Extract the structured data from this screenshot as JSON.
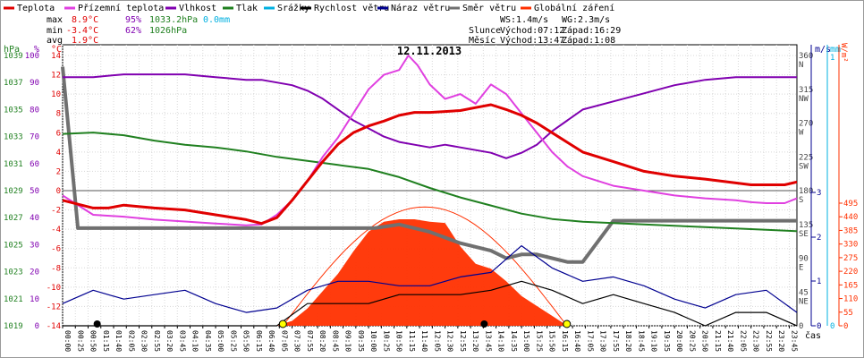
{
  "legend": [
    {
      "label": "Teplota",
      "color": "#e00000"
    },
    {
      "label": "Přízemní teplota",
      "color": "#e040e0"
    },
    {
      "label": "Vlhkost",
      "color": "#8000b0"
    },
    {
      "label": "Tlak",
      "color": "#208020"
    },
    {
      "label": "Srážky",
      "color": "#00b0e0"
    },
    {
      "label": "Rychlost větru",
      "color": "#000000"
    },
    {
      "label": "Náraz větru",
      "color": "#000090"
    },
    {
      "label": "Směr větru",
      "color": "#707070"
    },
    {
      "label": "Globální záření",
      "color": "#ff3000"
    }
  ],
  "stats": {
    "max_label": "max",
    "max_temp": "8.9°C",
    "max_hum": "95%",
    "max_press": "1033.2hPa",
    "max_rain": "0.0mm",
    "min_label": "min",
    "min_temp": "-3.4°C",
    "min_hum": "62%",
    "min_press": "1026hPa",
    "avg_label": "avg",
    "avg_temp": "1.9°C"
  },
  "wind_info": {
    "ws": "WS:1.4m/s",
    "wg": "WG:2.3m/s"
  },
  "sun_info": {
    "label": "Slunce",
    "rise": "Východ:07:12",
    "set": "Západ:16:29"
  },
  "moon_info": {
    "label": "Měsíc",
    "rise": "Východ:13:47",
    "set": "Západ:1:08"
  },
  "date": "12.11.2013",
  "axis_units": {
    "hpa": "hPa",
    "pct": "%",
    "deg_c": "°C",
    "ms": "m/s",
    "mm": "mm",
    "wm2": "W/m²",
    "cas": "čas"
  },
  "chart_data": {
    "type": "line",
    "title": "12.11.2013",
    "x_ticks": [
      "00:00",
      "00:25",
      "00:50",
      "01:15",
      "01:40",
      "02:05",
      "02:30",
      "02:55",
      "03:20",
      "03:45",
      "04:10",
      "04:35",
      "05:00",
      "05:25",
      "05:50",
      "06:15",
      "06:40",
      "07:05",
      "07:30",
      "07:55",
      "08:20",
      "08:45",
      "09:10",
      "09:35",
      "10:00",
      "10:25",
      "10:50",
      "11:15",
      "11:40",
      "12:05",
      "12:30",
      "12:55",
      "13:20",
      "13:45",
      "14:10",
      "14:35",
      "15:00",
      "15:25",
      "15:50",
      "16:15",
      "16:40",
      "17:05",
      "17:30",
      "17:55",
      "18:20",
      "18:45",
      "19:10",
      "19:35",
      "20:00",
      "20:25",
      "20:50",
      "21:15",
      "21:40",
      "22:05",
      "22:30",
      "22:55",
      "23:20",
      "23:45"
    ],
    "axes": {
      "pressure_hpa": {
        "ticks": [
          "1039",
          "1037",
          "1035",
          "1033",
          "1031",
          "1029",
          "1027",
          "1025",
          "1023",
          "1021",
          "1019"
        ]
      },
      "humidity_pct": {
        "ticks": [
          "100",
          "90",
          "80",
          "70",
          "60",
          "50",
          "40",
          "30",
          "20",
          "10",
          "0"
        ]
      },
      "temperature_c": {
        "ticks": [
          "14",
          "12",
          "10",
          "8",
          "6",
          "4",
          "2",
          "0",
          "-2",
          "-4",
          "-6",
          "-8",
          "-10",
          "-12",
          "-14"
        ]
      },
      "wind_dir": {
        "ticks": [
          "360",
          "315",
          "270",
          "225",
          "180",
          "135",
          "90",
          "45",
          "0"
        ],
        "labels": [
          "N",
          "NW",
          "W",
          "SW",
          "S",
          "SE",
          "E",
          "NE",
          ""
        ]
      },
      "wind_speed_ms": {
        "ticks": [
          "3",
          "2",
          "1",
          "0"
        ]
      },
      "rain_mm": {
        "ticks": [
          "1",
          "0"
        ]
      },
      "radiation_wm2": {
        "ticks": [
          "495",
          "440",
          "385",
          "330",
          "275",
          "220",
          "165",
          "110",
          "55",
          "0"
        ]
      }
    },
    "series": [
      {
        "name": "Teplota",
        "color": "#e00000",
        "x": [
          0,
          1,
          1.5,
          2,
          3,
          4,
          5,
          6,
          6.5,
          7,
          7.5,
          8,
          8.5,
          9,
          9.5,
          10,
          10.5,
          11,
          11.5,
          12,
          12.5,
          13,
          13.5,
          14,
          14.5,
          15,
          15.5,
          16,
          16.5,
          17,
          18,
          19,
          20,
          21,
          22,
          22.5,
          23,
          23.6,
          24
        ],
        "y": [
          -1.0,
          -1.8,
          -1.8,
          -1.5,
          -1.8,
          -2.0,
          -2.5,
          -3.0,
          -3.4,
          -2.8,
          -1.0,
          1.0,
          3.0,
          4.8,
          6.0,
          6.7,
          7.2,
          7.8,
          8.1,
          8.1,
          8.2,
          8.3,
          8.6,
          8.9,
          8.4,
          7.8,
          7.0,
          6.0,
          5.0,
          4.0,
          3.0,
          2.0,
          1.5,
          1.2,
          0.8,
          0.6,
          0.6,
          0.6,
          0.9
        ]
      },
      {
        "name": "Přízemní teplota",
        "color": "#e040e0",
        "x": [
          0,
          1,
          2,
          3,
          4,
          5,
          6,
          6.5,
          7,
          7.5,
          8,
          8.5,
          9,
          9.5,
          10,
          10.5,
          11,
          11.3,
          11.6,
          12,
          12.5,
          13,
          13.5,
          14,
          14.5,
          15,
          15.5,
          16,
          16.5,
          17,
          18,
          19,
          20,
          21,
          22,
          22.5,
          23,
          23.6,
          24
        ],
        "y": [
          -0.5,
          -2.5,
          -2.7,
          -3.0,
          -3.2,
          -3.4,
          -3.6,
          -3.5,
          -2.5,
          -1.0,
          1.0,
          3.5,
          5.5,
          8.0,
          10.5,
          12.0,
          12.5,
          14.0,
          13.0,
          11.0,
          9.5,
          10.0,
          9.0,
          11.0,
          10.0,
          8.0,
          6.0,
          4.0,
          2.5,
          1.5,
          0.5,
          0.0,
          -0.5,
          -0.8,
          -1.0,
          -1.2,
          -1.3,
          -1.3,
          -0.8
        ]
      },
      {
        "name": "Vlhkost",
        "color": "#8000b0",
        "x": [
          0,
          1,
          2,
          3,
          4,
          5,
          6,
          6.5,
          7,
          7.5,
          8,
          8.5,
          9,
          9.5,
          10,
          10.5,
          11,
          11.5,
          12,
          12.5,
          13,
          13.5,
          14,
          14.5,
          15,
          15.5,
          16,
          16.5,
          17,
          18,
          19,
          20,
          21,
          22,
          22.5,
          23,
          23.6,
          24
        ],
        "y": [
          92,
          92,
          93,
          93,
          93,
          92,
          91,
          91,
          90,
          89,
          87,
          84,
          80,
          76,
          73,
          70,
          68,
          67,
          66,
          67,
          66,
          65,
          64,
          62,
          64,
          67,
          72,
          76,
          80,
          83,
          86,
          89,
          91,
          92,
          92,
          92,
          92,
          92
        ]
      },
      {
        "name": "Tlak",
        "color": "#208020",
        "x": [
          0,
          1,
          2,
          3,
          4,
          5,
          6,
          7,
          8,
          9,
          10,
          10.5,
          11,
          12,
          13,
          14,
          15,
          16,
          17,
          18,
          19,
          20,
          21,
          22,
          23,
          24
        ],
        "y": [
          1033.2,
          1033.3,
          1033.1,
          1032.7,
          1032.4,
          1032.2,
          1031.9,
          1031.5,
          1031.2,
          1030.9,
          1030.6,
          1030.3,
          1030.0,
          1029.2,
          1028.5,
          1027.9,
          1027.3,
          1026.9,
          1026.7,
          1026.6,
          1026.5,
          1026.4,
          1026.3,
          1026.2,
          1026.1,
          1026.0
        ]
      },
      {
        "name": "Směr větru",
        "color": "#707070",
        "x": [
          0,
          0.5,
          1,
          10.2,
          11,
          12,
          13,
          14,
          14.5,
          15,
          15.5,
          16,
          16.5,
          17,
          18,
          19,
          20,
          21,
          22,
          23,
          24
        ],
        "y": [
          345,
          130,
          130,
          130,
          135,
          125,
          110,
          100,
          90,
          95,
          95,
          90,
          85,
          85,
          140,
          140,
          140,
          140,
          140,
          140,
          140
        ]
      },
      {
        "name": "Rychlost větru",
        "color": "#000000",
        "x": [
          0,
          1,
          2,
          3,
          4,
          5,
          6,
          7,
          8,
          9,
          10,
          11,
          12,
          13,
          14,
          15,
          16,
          17,
          18,
          19,
          20,
          21,
          22,
          23,
          24
        ],
        "y": [
          0,
          0,
          0,
          0,
          0,
          0,
          0,
          0,
          0.5,
          0.5,
          0.5,
          0.7,
          0.7,
          0.7,
          0.8,
          1.0,
          0.8,
          0.5,
          0.7,
          0.5,
          0.3,
          0,
          0.3,
          0.3,
          0
        ]
      },
      {
        "name": "Náraz větru",
        "color": "#000090",
        "x": [
          0,
          1,
          2,
          3,
          4,
          5,
          6,
          7,
          8,
          9,
          10,
          11,
          12,
          13,
          14,
          15,
          16,
          17,
          18,
          19,
          20,
          21,
          22,
          23,
          24
        ],
        "y": [
          0.5,
          0.8,
          0.6,
          0.7,
          0.8,
          0.5,
          0.3,
          0.4,
          0.8,
          1.0,
          1.0,
          0.9,
          0.9,
          1.1,
          1.2,
          1.8,
          1.3,
          1.0,
          1.1,
          0.9,
          0.6,
          0.4,
          0.7,
          0.8,
          0.3
        ]
      },
      {
        "name": "Globální záření",
        "color": "#ff3000",
        "x": [
          7,
          7.5,
          8,
          8.5,
          9,
          9.5,
          10,
          10.5,
          11,
          11.5,
          12,
          12.5,
          13,
          13.5,
          14,
          14.5,
          15,
          15.5,
          16,
          16.5
        ],
        "y": [
          0,
          20,
          70,
          140,
          210,
          300,
          380,
          420,
          430,
          430,
          420,
          415,
          320,
          250,
          230,
          180,
          120,
          80,
          40,
          0
        ]
      }
    ]
  }
}
